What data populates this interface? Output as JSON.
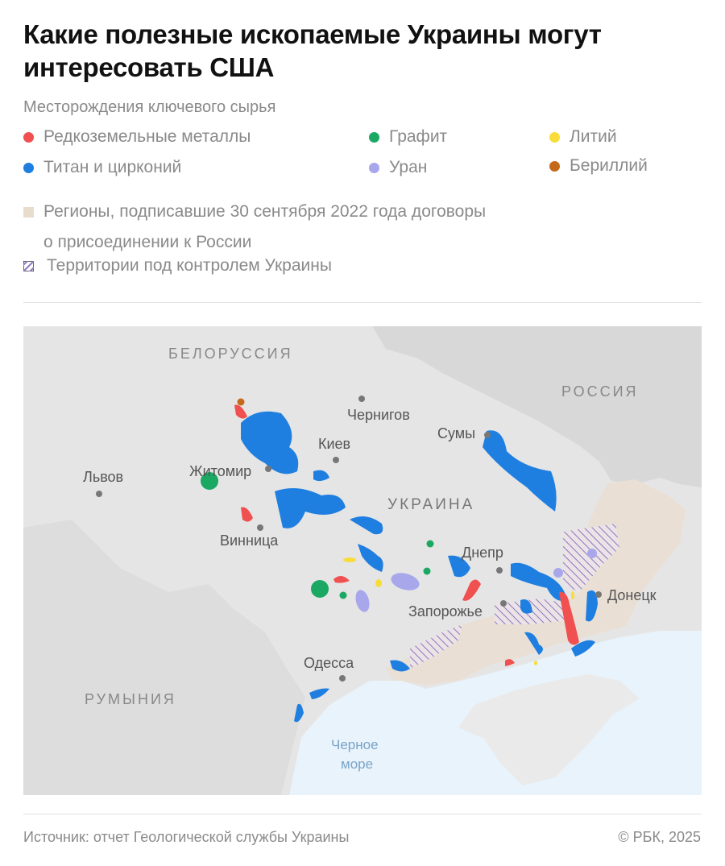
{
  "title": "Какие полезные ископаемые Украины могут интересовать США",
  "subtitle": "Месторождения ключевого сырья",
  "legend": {
    "minerals": [
      {
        "label": "Редкоземельные металлы",
        "color": "#f0504f"
      },
      {
        "label": "Графит",
        "color": "#1aa863"
      },
      {
        "label": "Литий",
        "color": "#f9dc3a"
      },
      {
        "label": "Титан и цирконий",
        "color": "#1f7fe0"
      },
      {
        "label": "Уран",
        "color": "#a9a7ec"
      },
      {
        "label": "Бериллий",
        "color": "#c56a1a"
      }
    ],
    "annexed": {
      "label_line1": "Регионы, подписавшие 30 сентября 2022 года договоры",
      "label_line2": "о присоединении к России",
      "color": "#e8dccd"
    },
    "controlled": {
      "label": "Территории под контролем Украины",
      "color": "#8a78c0"
    }
  },
  "map": {
    "countries": {
      "belarus": "БЕЛОРУССИЯ",
      "russia": "РОССИЯ",
      "ukraine": "УКРАИНА",
      "romania": "РУМЫНИЯ"
    },
    "sea_line1": "Черное",
    "sea_line2": "море",
    "cities": {
      "chernigov": "Чернигов",
      "sumy": "Сумы",
      "kiev": "Киев",
      "zhitomir": "Житомир",
      "lvov": "Львов",
      "vinnitsa": "Винница",
      "dnepr": "Днепр",
      "zaporozhye": "Запорожье",
      "donetsk": "Донецк",
      "odessa": "Одесса"
    }
  },
  "footer": {
    "source": "Источник: отчет Геологической службы Украины",
    "copyright": "© РБК, 2025"
  }
}
